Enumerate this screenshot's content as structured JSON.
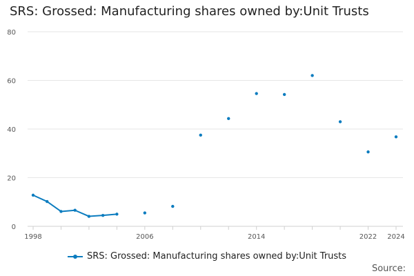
{
  "chart_data": {
    "type": "line",
    "title": "SRS: Grossed: Manufacturing shares owned by:Unit Trusts",
    "xlabel": "",
    "ylabel": "",
    "ylim": [
      0,
      80
    ],
    "xlim": [
      1998,
      2024
    ],
    "y_ticks": [
      0,
      20,
      40,
      60,
      80
    ],
    "x_ticks": [
      1998,
      2006,
      2014,
      2022,
      2024
    ],
    "grid": true,
    "legend_position": "bottom",
    "series": [
      {
        "name": "SRS: Grossed: Manufacturing shares owned by:Unit Trusts",
        "color": "#0b7cbf",
        "points": [
          {
            "x": 1998,
            "y": 12.8
          },
          {
            "x": 1999,
            "y": 10.2
          },
          {
            "x": 2000,
            "y": 6.1
          },
          {
            "x": 2001,
            "y": 6.6
          },
          {
            "x": 2002,
            "y": 4.1
          },
          {
            "x": 2003,
            "y": 4.5
          },
          {
            "x": 2004,
            "y": 5.0
          },
          {
            "x": 2006,
            "y": 5.5
          },
          {
            "x": 2008,
            "y": 8.2
          },
          {
            "x": 2010,
            "y": 37.5
          },
          {
            "x": 2012,
            "y": 44.3
          },
          {
            "x": 2014,
            "y": 54.6
          },
          {
            "x": 2016,
            "y": 54.2
          },
          {
            "x": 2018,
            "y": 62.0
          },
          {
            "x": 2020,
            "y": 43.0
          },
          {
            "x": 2022,
            "y": 30.6
          },
          {
            "x": 2024,
            "y": 36.8
          }
        ]
      }
    ]
  },
  "legend_label": "SRS: Grossed: Manufacturing shares owned by:Unit Trusts",
  "source_label": "Source:"
}
